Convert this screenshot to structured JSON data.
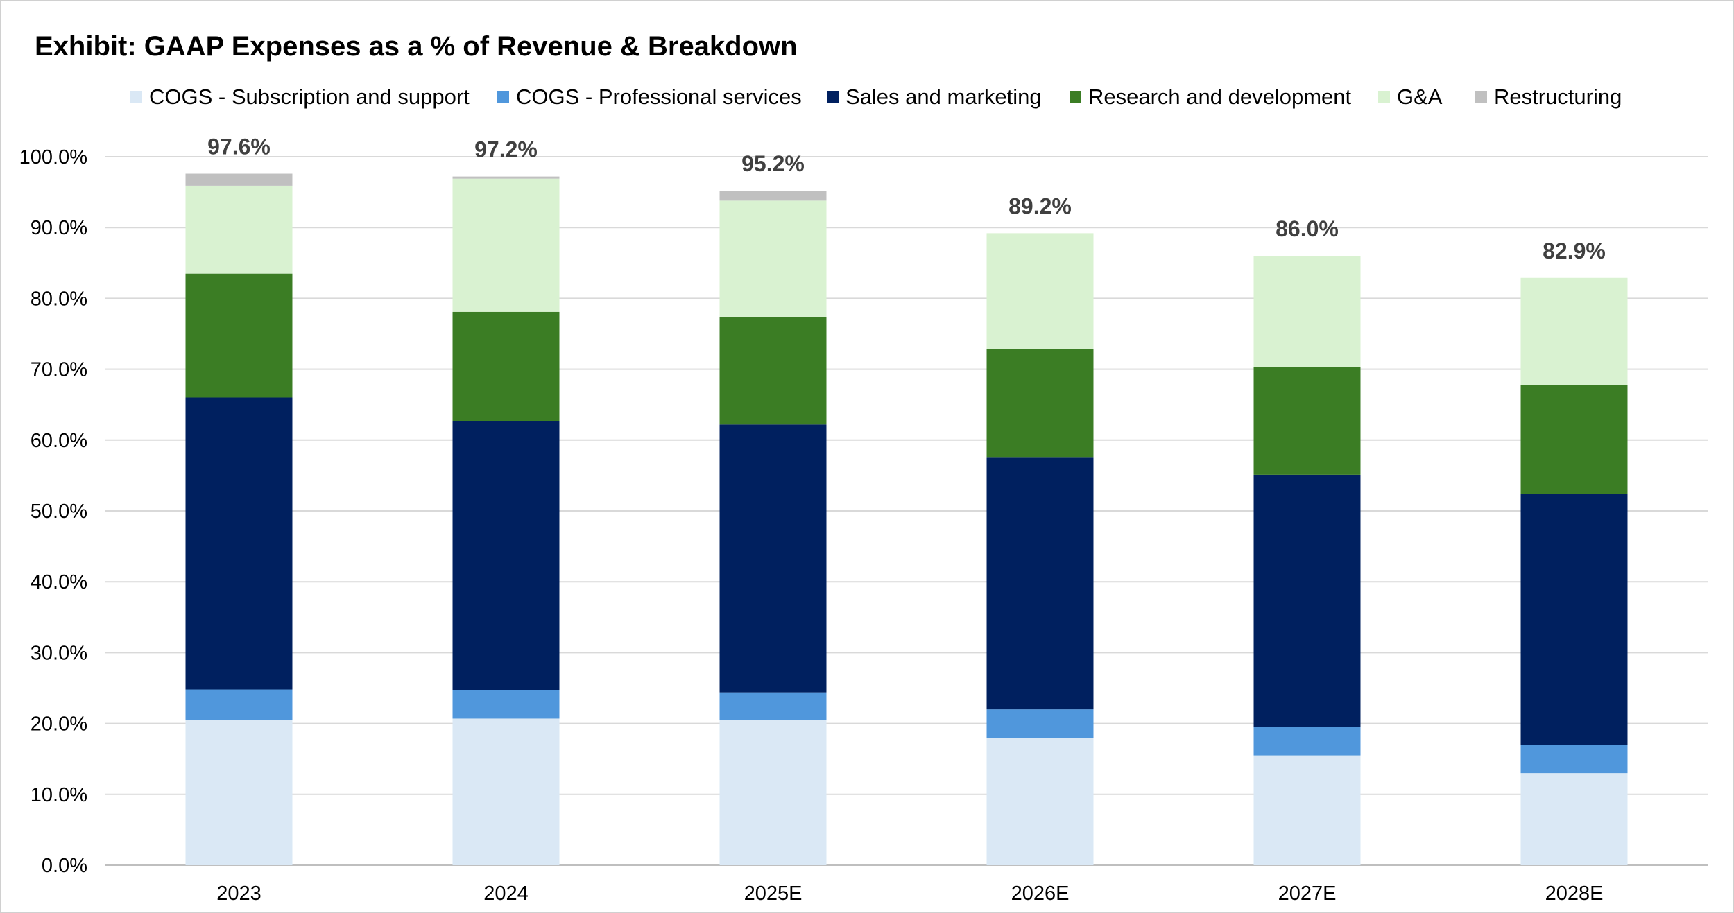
{
  "chart_data": {
    "type": "bar",
    "stacked": true,
    "title": "Exhibit: GAAP Expenses as a % of Revenue & Breakdown",
    "xlabel": "",
    "ylabel": "",
    "ylim": [
      0,
      100
    ],
    "y_ticks": [
      "0.0%",
      "10.0%",
      "20.0%",
      "30.0%",
      "40.0%",
      "50.0%",
      "60.0%",
      "70.0%",
      "80.0%",
      "90.0%",
      "100.0%"
    ],
    "grid": true,
    "legend_position": "top",
    "categories": [
      "2023",
      "2024",
      "2025E",
      "2026E",
      "2027E",
      "2028E"
    ],
    "series": [
      {
        "name": "COGS - Subscription and support",
        "color": "#dae8f5",
        "values": [
          20.5,
          20.7,
          20.5,
          18.0,
          15.5,
          13.0
        ]
      },
      {
        "name": "COGS - Professional services",
        "color": "#5097dc",
        "values": [
          4.3,
          4.0,
          3.9,
          4.0,
          4.0,
          4.0
        ]
      },
      {
        "name": "Sales and marketing",
        "color": "#00205f",
        "values": [
          41.2,
          38.0,
          37.8,
          35.6,
          35.6,
          35.4
        ]
      },
      {
        "name": "Research and development",
        "color": "#3b7d24",
        "values": [
          17.5,
          15.4,
          15.2,
          15.3,
          15.2,
          15.4
        ]
      },
      {
        "name": "G&A",
        "color": "#d9f2d1",
        "values": [
          12.4,
          18.8,
          16.4,
          16.3,
          15.7,
          15.1
        ]
      },
      {
        "name": "Restructuring",
        "color": "#c0c0c0",
        "values": [
          1.7,
          0.3,
          1.4,
          0.0,
          0.0,
          0.0
        ]
      }
    ],
    "totals": [
      "97.6%",
      "97.2%",
      "95.2%",
      "89.2%",
      "86.0%",
      "82.9%"
    ],
    "total_values": [
      97.6,
      97.2,
      95.2,
      89.2,
      86.0,
      82.9
    ]
  }
}
